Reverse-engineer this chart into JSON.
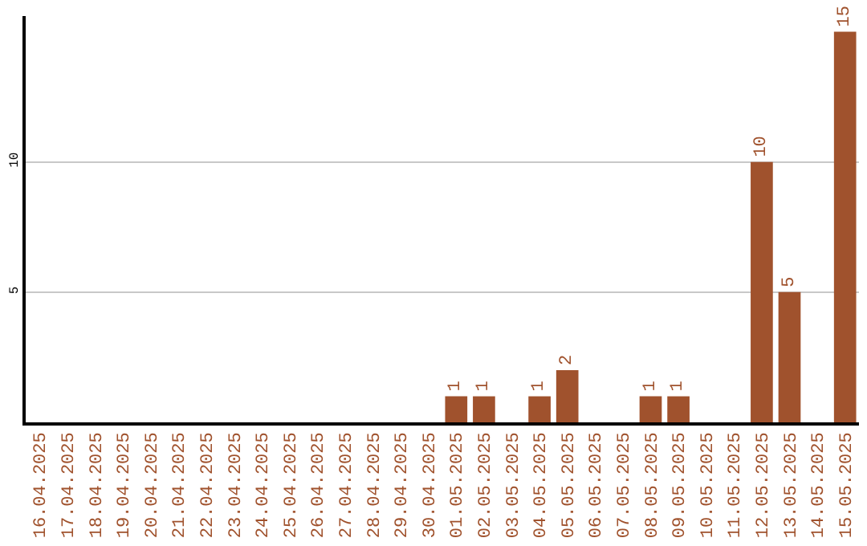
{
  "chart_data": {
    "type": "bar",
    "categories": [
      "16.04.2025",
      "17.04.2025",
      "18.04.2025",
      "19.04.2025",
      "20.04.2025",
      "21.04.2025",
      "22.04.2025",
      "23.04.2025",
      "24.04.2025",
      "25.04.2025",
      "26.04.2025",
      "27.04.2025",
      "28.04.2025",
      "29.04.2025",
      "30.04.2025",
      "01.05.2025",
      "02.05.2025",
      "03.05.2025",
      "04.05.2025",
      "05.05.2025",
      "06.05.2025",
      "07.05.2025",
      "08.05.2025",
      "09.05.2025",
      "10.05.2025",
      "11.05.2025",
      "12.05.2025",
      "13.05.2025",
      "14.05.2025",
      "15.05.2025"
    ],
    "values": [
      0,
      0,
      0,
      0,
      0,
      0,
      0,
      0,
      0,
      0,
      0,
      0,
      0,
      0,
      0,
      1,
      1,
      0,
      1,
      2,
      0,
      0,
      1,
      1,
      0,
      0,
      10,
      5,
      0,
      15
    ],
    "value_labels": [
      null,
      null,
      null,
      null,
      null,
      null,
      null,
      null,
      null,
      null,
      null,
      null,
      null,
      null,
      null,
      "1",
      "1",
      null,
      "1",
      "2",
      null,
      null,
      "1",
      "1",
      null,
      null,
      "10",
      "5",
      null,
      "15"
    ],
    "color": "#a0522d",
    "ylim": [
      0,
      15.6
    ],
    "yticks": [
      5,
      10
    ],
    "grid": "y",
    "legend": false
  }
}
